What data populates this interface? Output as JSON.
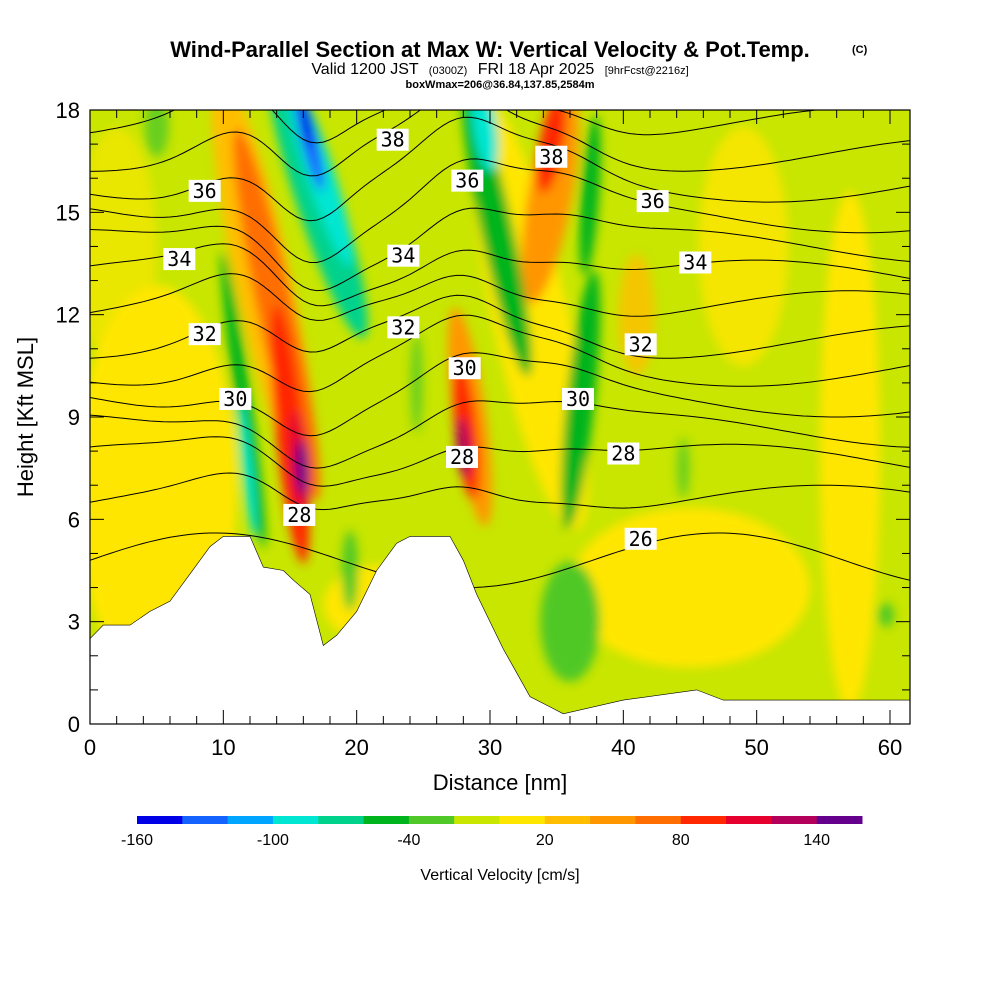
{
  "chart_data": {
    "type": "heatmap",
    "title": "Wind-Parallel Section at Max W: Vertical Velocity & Pot.Temp.",
    "title_mark": "(C)",
    "subtitle_valid": "Valid 1200 JST",
    "subtitle_utc": "(0300Z)",
    "subtitle_date": "FRI 18 Apr 2025",
    "subtitle_fcst": "[9hrFcst@2216z]",
    "subtitle_box": "boxWmax=206@36.84,137.85,2584m",
    "xlabel": "Distance [nm]",
    "ylabel": "Height [Kft MSL]",
    "xlim": [
      0,
      61.5
    ],
    "ylim": [
      0,
      18
    ],
    "x_ticks": [
      "0",
      "10",
      "20",
      "30",
      "40",
      "50",
      "60"
    ],
    "y_ticks": [
      "0",
      "3",
      "6",
      "9",
      "12",
      "15",
      "18"
    ],
    "colorbar": {
      "label": "Vertical Velocity [cm/s]",
      "tick_labels": [
        "-160",
        "-100",
        "-40",
        "20",
        "80",
        "140"
      ],
      "tick_values": [
        -160,
        -100,
        -40,
        20,
        80,
        140
      ],
      "min": -160,
      "max": 160,
      "colors": [
        "#0000e6",
        "#1463ff",
        "#00a5ff",
        "#00e6d2",
        "#00d28c",
        "#00b41e",
        "#50c828",
        "#c8e600",
        "#ffe600",
        "#ffbe00",
        "#ff9600",
        "#ff6e00",
        "#ff2800",
        "#e6002d",
        "#b4005a",
        "#64008c"
      ]
    },
    "theta_contour_labels": [
      {
        "value": "38",
        "x": 22.7,
        "y": 17.1
      },
      {
        "value": "38",
        "x": 34.6,
        "y": 16.6
      },
      {
        "value": "36",
        "x": 8.6,
        "y": 15.6
      },
      {
        "value": "36",
        "x": 28.3,
        "y": 15.9
      },
      {
        "value": "36",
        "x": 42.2,
        "y": 15.3
      },
      {
        "value": "34",
        "x": 6.7,
        "y": 13.6
      },
      {
        "value": "34",
        "x": 23.5,
        "y": 13.7
      },
      {
        "value": "34",
        "x": 45.4,
        "y": 13.5
      },
      {
        "value": "32",
        "x": 8.6,
        "y": 11.4
      },
      {
        "value": "32",
        "x": 23.5,
        "y": 11.6
      },
      {
        "value": "32",
        "x": 41.3,
        "y": 11.1
      },
      {
        "value": "30",
        "x": 10.9,
        "y": 9.5
      },
      {
        "value": "30",
        "x": 28.1,
        "y": 10.4
      },
      {
        "value": "30",
        "x": 36.6,
        "y": 9.5
      },
      {
        "value": "28",
        "x": 27.9,
        "y": 7.8
      },
      {
        "value": "28",
        "x": 40.0,
        "y": 7.9
      },
      {
        "value": "28",
        "x": 15.7,
        "y": 6.1
      },
      {
        "value": "26",
        "x": 41.3,
        "y": 5.4
      }
    ],
    "terrain_profile": [
      {
        "x": 0,
        "y": 2.5
      },
      {
        "x": 1,
        "y": 2.9
      },
      {
        "x": 3,
        "y": 2.9
      },
      {
        "x": 4.5,
        "y": 3.3
      },
      {
        "x": 6,
        "y": 3.6
      },
      {
        "x": 7.5,
        "y": 4.4
      },
      {
        "x": 9,
        "y": 5.2
      },
      {
        "x": 10,
        "y": 5.5
      },
      {
        "x": 12,
        "y": 5.5
      },
      {
        "x": 13,
        "y": 4.6
      },
      {
        "x": 14.5,
        "y": 4.5
      },
      {
        "x": 15.3,
        "y": 4.2
      },
      {
        "x": 16.5,
        "y": 3.8
      },
      {
        "x": 17.5,
        "y": 2.3
      },
      {
        "x": 18.5,
        "y": 2.6
      },
      {
        "x": 20,
        "y": 3.3
      },
      {
        "x": 21.5,
        "y": 4.5
      },
      {
        "x": 23,
        "y": 5.3
      },
      {
        "x": 24,
        "y": 5.5
      },
      {
        "x": 27,
        "y": 5.5
      },
      {
        "x": 28,
        "y": 4.8
      },
      {
        "x": 29,
        "y": 3.8
      },
      {
        "x": 30,
        "y": 3.0
      },
      {
        "x": 31,
        "y": 2.2
      },
      {
        "x": 32,
        "y": 1.5
      },
      {
        "x": 33,
        "y": 0.8
      },
      {
        "x": 34.5,
        "y": 0.5
      },
      {
        "x": 35.5,
        "y": 0.3
      },
      {
        "x": 40,
        "y": 0.7
      },
      {
        "x": 45.5,
        "y": 1.0
      },
      {
        "x": 47.5,
        "y": 0.7
      },
      {
        "x": 61.5,
        "y": 0.7
      }
    ]
  }
}
